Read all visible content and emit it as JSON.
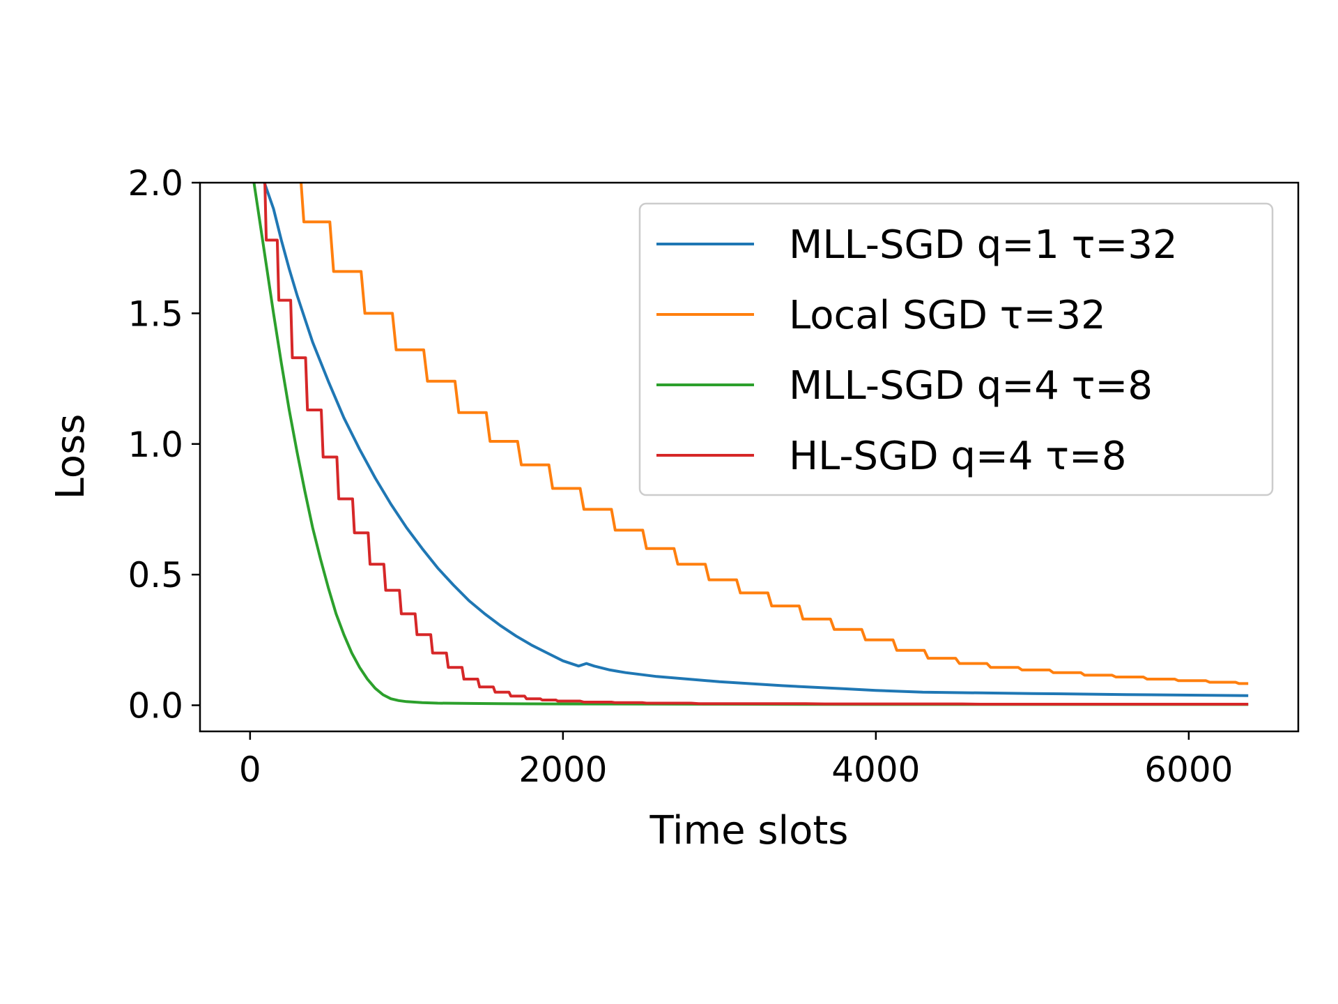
{
  "chart_data": {
    "type": "line",
    "title": "",
    "xlabel": "Time slots",
    "ylabel": "Loss",
    "xlim": [
      -320,
      6700
    ],
    "ylim": [
      -0.1,
      2.0
    ],
    "xticks": [
      0,
      2000,
      4000,
      6000
    ],
    "xtick_labels": [
      "0",
      "2000",
      "4000",
      "6000"
    ],
    "yticks": [
      0.0,
      0.5,
      1.0,
      1.5,
      2.0
    ],
    "ytick_labels": [
      "0.0",
      "0.5",
      "1.0",
      "1.5",
      "2.0"
    ],
    "grid": false,
    "legend_position": "upper-right",
    "series": [
      {
        "name": "MLL-SGD q=1 τ=32",
        "color": "#1f77b4",
        "stepped": false,
        "x": [
          80,
          150,
          200,
          250,
          300,
          400,
          500,
          600,
          700,
          800,
          900,
          1000,
          1100,
          1200,
          1300,
          1400,
          1500,
          1600,
          1700,
          1800,
          1900,
          2000,
          2100,
          2150,
          2200,
          2300,
          2400,
          2600,
          2800,
          3000,
          3400,
          3800,
          4000,
          4300,
          5000,
          5600,
          6380
        ],
        "y": [
          2.02,
          1.9,
          1.78,
          1.67,
          1.57,
          1.39,
          1.24,
          1.1,
          0.98,
          0.87,
          0.77,
          0.68,
          0.6,
          0.525,
          0.46,
          0.4,
          0.35,
          0.305,
          0.265,
          0.23,
          0.2,
          0.17,
          0.15,
          0.16,
          0.15,
          0.135,
          0.125,
          0.11,
          0.1,
          0.09,
          0.075,
          0.063,
          0.057,
          0.05,
          0.045,
          0.041,
          0.037
        ]
      },
      {
        "name": "Local SGD τ=32",
        "color": "#ff7f0e",
        "stepped": true,
        "x": [
          230,
          400,
          600,
          800,
          1000,
          1200,
          1400,
          1600,
          1800,
          2000,
          2200,
          2400,
          2600,
          2800,
          3000,
          3200,
          3400,
          3600,
          3800,
          4000,
          4200,
          4400,
          4600,
          4800,
          5000,
          5200,
          5400,
          5600,
          5800,
          6000,
          6200,
          6380
        ],
        "y": [
          2.02,
          1.85,
          1.66,
          1.5,
          1.36,
          1.24,
          1.12,
          1.01,
          0.92,
          0.83,
          0.75,
          0.67,
          0.6,
          0.54,
          0.48,
          0.43,
          0.38,
          0.33,
          0.29,
          0.25,
          0.21,
          0.18,
          0.16,
          0.145,
          0.135,
          0.125,
          0.115,
          0.108,
          0.1,
          0.094,
          0.088,
          0.083
        ]
      },
      {
        "name": "MLL-SGD q=4 τ=8",
        "color": "#2ca02c",
        "stepped": false,
        "x": [
          20,
          50,
          100,
          150,
          200,
          250,
          300,
          350,
          400,
          450,
          500,
          550,
          600,
          650,
          700,
          750,
          800,
          850,
          900,
          950,
          1000,
          1100,
          1200,
          1400,
          1600,
          2000,
          3000,
          4000,
          6380
        ],
        "y": [
          2.02,
          1.9,
          1.7,
          1.5,
          1.31,
          1.13,
          0.97,
          0.82,
          0.68,
          0.56,
          0.45,
          0.35,
          0.27,
          0.2,
          0.145,
          0.1,
          0.065,
          0.04,
          0.025,
          0.018,
          0.014,
          0.01,
          0.008,
          0.007,
          0.006,
          0.005,
          0.004,
          0.003,
          0.003
        ]
      },
      {
        "name": "HL-SGD q=4 τ=8",
        "color": "#d62728",
        "stepped": true,
        "x": [
          50,
          130,
          210,
          300,
          400,
          500,
          600,
          700,
          800,
          900,
          1000,
          1100,
          1200,
          1300,
          1400,
          1500,
          1600,
          1700,
          1800,
          1900,
          2000,
          2200,
          2400,
          2600,
          3000,
          4000,
          5000,
          6380
        ],
        "y": [
          2.02,
          1.78,
          1.55,
          1.33,
          1.13,
          0.95,
          0.79,
          0.66,
          0.54,
          0.44,
          0.35,
          0.27,
          0.2,
          0.145,
          0.1,
          0.07,
          0.05,
          0.035,
          0.025,
          0.02,
          0.016,
          0.012,
          0.01,
          0.008,
          0.006,
          0.005,
          0.004,
          0.004
        ]
      }
    ]
  }
}
